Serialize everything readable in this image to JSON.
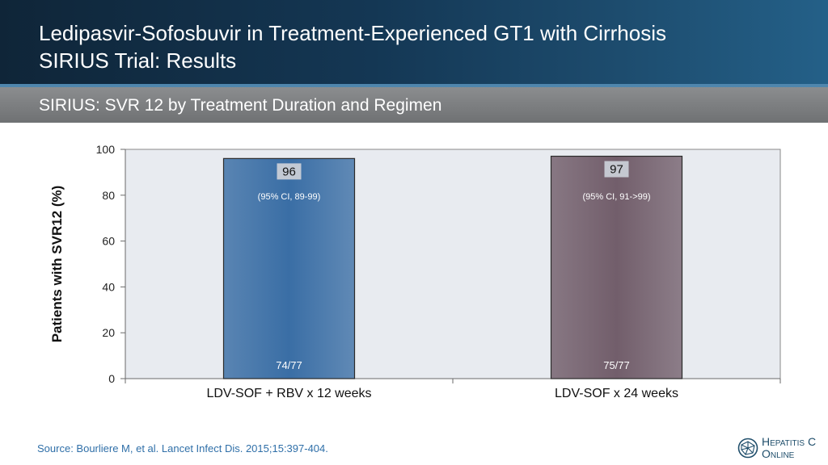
{
  "header": {
    "title_line1": "Ledipasvir-Sofosbuvir in Treatment-Experienced GT1 with Cirrhosis",
    "title_line2": "SIRIUS Trial: Results"
  },
  "subheader": {
    "title": "SIRIUS: SVR 12 by Treatment Duration and Regimen"
  },
  "chart_data": {
    "type": "bar",
    "categories": [
      "LDV-SOF + RBV x 12 weeks",
      "LDV-SOF x 24 weeks"
    ],
    "values": [
      96,
      97
    ],
    "value_labels": [
      "96",
      "97"
    ],
    "ci_labels": [
      "(95% CI, 89-99)",
      "(95% CI, 91->99)"
    ],
    "n_labels": [
      "74/77",
      "75/77"
    ],
    "bar_colors": [
      "#3a6ea5",
      "#725e6b"
    ],
    "ylabel": "Patients with SVR12 (%)",
    "ylim": [
      0,
      100
    ],
    "yticks": [
      0,
      20,
      40,
      60,
      80,
      100
    ],
    "grid": false,
    "plot_background": "#e8ebf0"
  },
  "footer": {
    "source": "Source: Bourliere M, et al. Lancet Infect Dis. 2015;15:397-404."
  },
  "logo": {
    "line1": "Hepatitis C",
    "line2": "Online"
  }
}
